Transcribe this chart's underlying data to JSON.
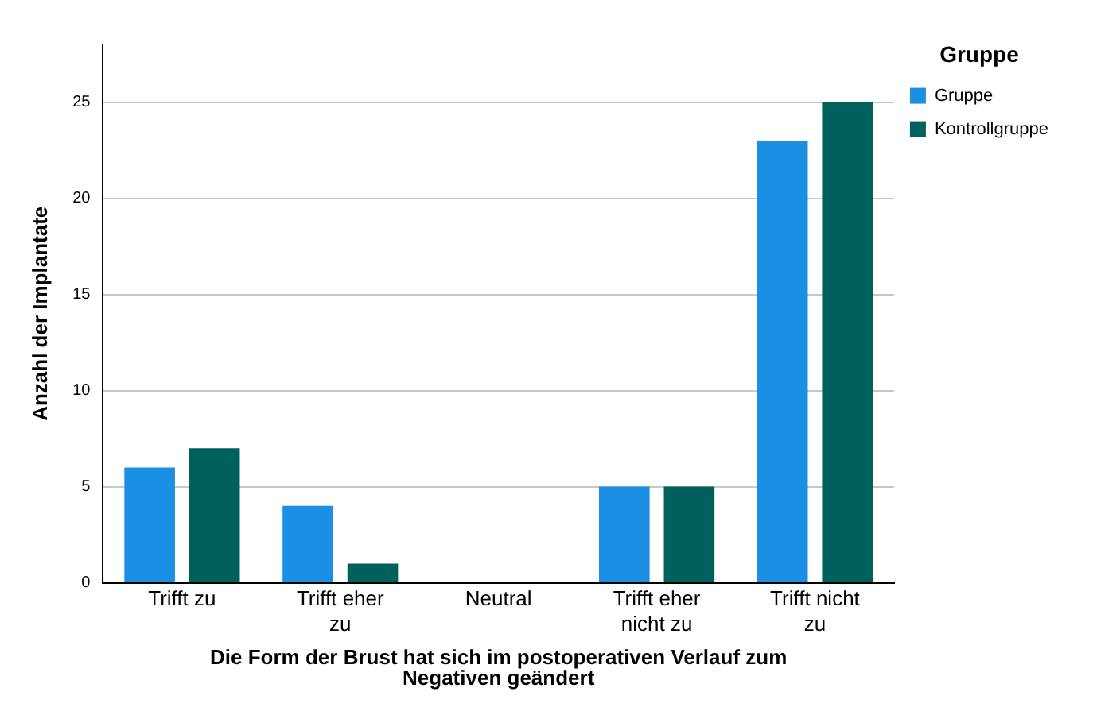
{
  "chart_data": {
    "type": "bar",
    "xlabel": "Die Form der Brust hat sich im postoperativen Verlauf zum Negativen geändert",
    "ylabel": "Anzahl der Implantate",
    "legend_title": "Gruppe",
    "categories": [
      "Trifft zu",
      "Trifft eher zu",
      "Neutral",
      "Trifft eher nicht zu",
      "Trifft nicht zu"
    ],
    "series": [
      {
        "name": "Gruppe",
        "color": "#1a8fe3",
        "values": [
          6,
          4,
          0,
          5,
          23
        ]
      },
      {
        "name": "Kontrollgruppe",
        "color": "#00605c",
        "values": [
          7,
          1,
          0,
          5,
          25
        ]
      }
    ],
    "ylim": [
      0,
      28
    ],
    "yticks": [
      0,
      5,
      10,
      15,
      20,
      25
    ],
    "grid": "y",
    "legend": "top right"
  }
}
